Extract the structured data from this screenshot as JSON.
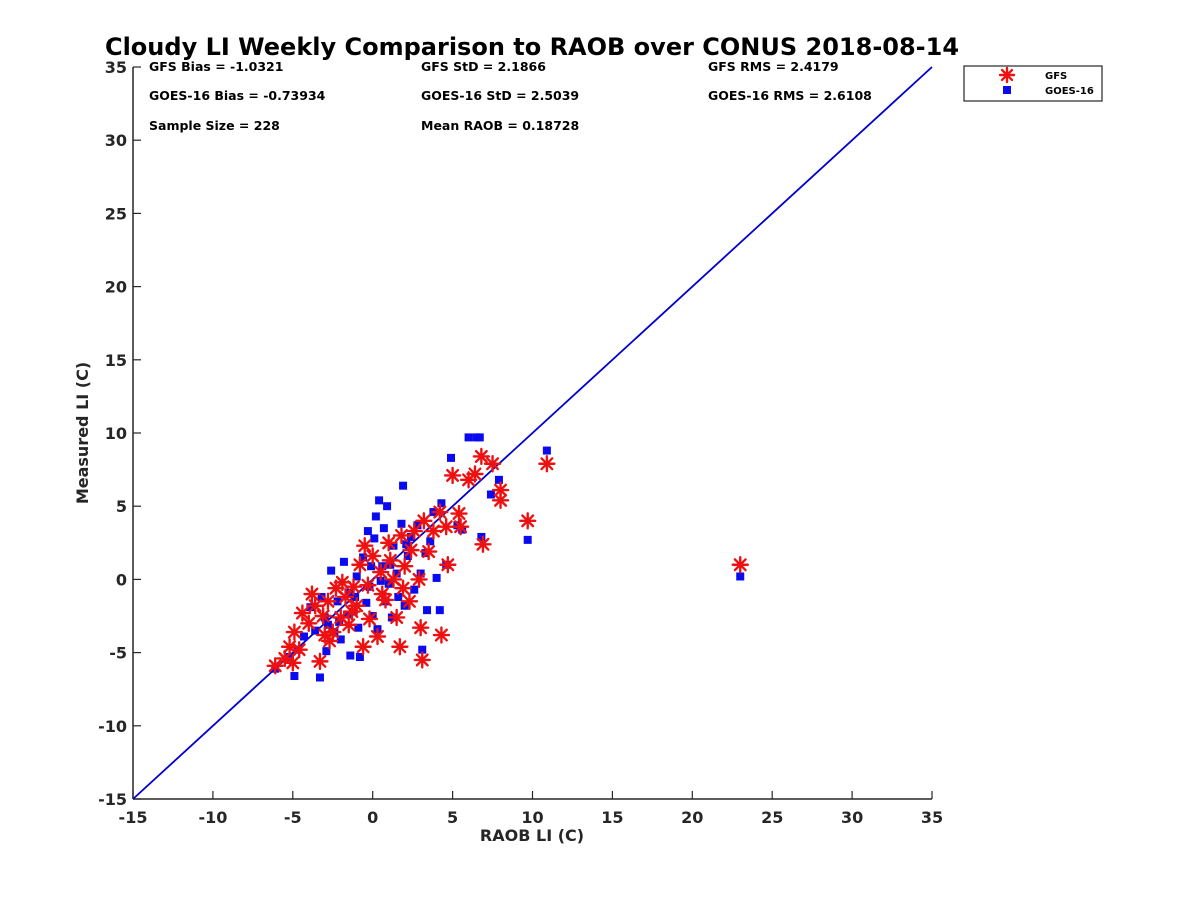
{
  "chart_data": {
    "type": "scatter",
    "title": "Cloudy LI Weekly Comparison to RAOB over CONUS 2018-08-14",
    "xlabel": "RAOB LI (C)",
    "ylabel": "Measured LI (C)",
    "xlim": [
      -15,
      35
    ],
    "ylim": [
      -15,
      35
    ],
    "x_ticks": [
      "-15",
      "-10",
      "-5",
      "0",
      "5",
      "10",
      "15",
      "20",
      "25",
      "30",
      "35"
    ],
    "y_ticks": [
      "-15",
      "-10",
      "-5",
      "0",
      "5",
      "10",
      "15",
      "20",
      "25",
      "30",
      "35"
    ],
    "grid": false,
    "legend_position": "top-right (outside plot)",
    "reference_line": {
      "from": [
        -15,
        -15
      ],
      "to": [
        35,
        35
      ],
      "color": "#0000d0"
    },
    "stats": [
      {
        "key": "gfs_bias",
        "text": "GFS Bias = -1.0321"
      },
      {
        "key": "gfs_std",
        "text": "GFS StD = 2.1866"
      },
      {
        "key": "gfs_rms",
        "text": "GFS RMS = 2.4179"
      },
      {
        "key": "goes_bias",
        "text": "GOES-16 Bias = -0.73934"
      },
      {
        "key": "goes_std",
        "text": "GOES-16 StD = 2.5039"
      },
      {
        "key": "goes_rms",
        "text": "GOES-16 RMS = 2.6108"
      },
      {
        "key": "sample_size",
        "text": "Sample Size = 228"
      },
      {
        "key": "mean_raob",
        "text": "Mean RAOB = 0.18728"
      }
    ],
    "series": [
      {
        "name": "GFS",
        "marker": "asterisk",
        "color": "#ee1111",
        "points": [
          [
            -6.1,
            -5.9
          ],
          [
            -5.2,
            -4.6
          ],
          [
            -4.9,
            -3.6
          ],
          [
            -5.0,
            -5.7
          ],
          [
            -4.4,
            -2.3
          ],
          [
            -3.8,
            -1.0
          ],
          [
            -3.3,
            -5.6
          ],
          [
            -3.1,
            -2.5
          ],
          [
            -2.8,
            -1.5
          ],
          [
            -2.5,
            -3.6
          ],
          [
            -2.3,
            -0.6
          ],
          [
            -2.0,
            -2.6
          ],
          [
            -1.7,
            -1.2
          ],
          [
            -1.5,
            -3.1
          ],
          [
            -1.2,
            -0.5
          ],
          [
            -1.0,
            -1.8
          ],
          [
            -0.8,
            1.0
          ],
          [
            -0.6,
            -4.6
          ],
          [
            -0.5,
            2.3
          ],
          [
            -0.3,
            -0.4
          ],
          [
            0.0,
            1.6
          ],
          [
            0.3,
            -3.9
          ],
          [
            0.5,
            0.5
          ],
          [
            0.8,
            -1.4
          ],
          [
            1.0,
            2.5
          ],
          [
            1.3,
            0.0
          ],
          [
            1.5,
            -2.6
          ],
          [
            1.7,
            -4.6
          ],
          [
            1.8,
            3.0
          ],
          [
            2.0,
            0.9
          ],
          [
            2.3,
            -1.5
          ],
          [
            2.6,
            3.3
          ],
          [
            2.9,
            0.0
          ],
          [
            3.0,
            -3.3
          ],
          [
            3.2,
            4.0
          ],
          [
            3.1,
            -5.5
          ],
          [
            3.5,
            1.9
          ],
          [
            3.8,
            3.3
          ],
          [
            4.2,
            4.6
          ],
          [
            4.3,
            -3.8
          ],
          [
            4.6,
            3.6
          ],
          [
            4.7,
            1.0
          ],
          [
            5.0,
            7.1
          ],
          [
            5.4,
            4.5
          ],
          [
            5.5,
            3.6
          ],
          [
            6.0,
            6.8
          ],
          [
            6.4,
            7.2
          ],
          [
            6.8,
            8.4
          ],
          [
            6.9,
            2.4
          ],
          [
            7.5,
            7.9
          ],
          [
            8.0,
            6.1
          ],
          [
            8.0,
            5.4
          ],
          [
            9.7,
            4.0
          ],
          [
            10.9,
            7.9
          ],
          [
            23.0,
            1.0
          ],
          [
            -4.0,
            -3.0
          ],
          [
            -3.6,
            -1.8
          ],
          [
            -2.7,
            -4.2
          ],
          [
            -1.9,
            -0.2
          ],
          [
            -1.3,
            -2.2
          ],
          [
            -0.2,
            -2.7
          ],
          [
            0.6,
            -1.0
          ],
          [
            1.1,
            1.3
          ],
          [
            1.9,
            -0.6
          ],
          [
            2.4,
            2.0
          ],
          [
            -5.5,
            -5.4
          ],
          [
            -4.6,
            -4.8
          ],
          [
            -3.0,
            -3.8
          ]
        ]
      },
      {
        "name": "GOES-16",
        "marker": "square",
        "color": "#0a0af0",
        "points": [
          [
            -6.1,
            -6.1
          ],
          [
            -5.2,
            -5.3
          ],
          [
            -4.9,
            -6.6
          ],
          [
            -4.7,
            -4.8
          ],
          [
            -4.3,
            -3.9
          ],
          [
            -3.9,
            -1.9
          ],
          [
            -3.3,
            -6.7
          ],
          [
            -3.2,
            -1.2
          ],
          [
            -3.0,
            -2.6
          ],
          [
            -2.9,
            -4.9
          ],
          [
            -2.6,
            0.6
          ],
          [
            -2.4,
            -3.6
          ],
          [
            -2.2,
            -1.5
          ],
          [
            -2.0,
            -4.1
          ],
          [
            -1.8,
            1.2
          ],
          [
            -1.5,
            -0.9
          ],
          [
            -1.4,
            -5.2
          ],
          [
            -1.2,
            -2.2
          ],
          [
            -1.0,
            0.2
          ],
          [
            -0.9,
            -3.3
          ],
          [
            -0.8,
            -5.3
          ],
          [
            -0.6,
            1.5
          ],
          [
            -0.4,
            -1.6
          ],
          [
            -0.3,
            3.3
          ],
          [
            -0.2,
            -0.5
          ],
          [
            0.0,
            -2.5
          ],
          [
            0.1,
            2.8
          ],
          [
            0.2,
            4.3
          ],
          [
            0.3,
            -3.4
          ],
          [
            0.4,
            5.4
          ],
          [
            0.6,
            0.9
          ],
          [
            0.7,
            3.5
          ],
          [
            0.8,
            -1.5
          ],
          [
            0.9,
            5.0
          ],
          [
            1.0,
            -0.3
          ],
          [
            1.2,
            -2.6
          ],
          [
            1.3,
            2.3
          ],
          [
            1.5,
            0.4
          ],
          [
            1.6,
            -1.2
          ],
          [
            1.8,
            3.8
          ],
          [
            1.9,
            6.4
          ],
          [
            2.0,
            -1.8
          ],
          [
            2.2,
            1.6
          ],
          [
            2.4,
            2.9
          ],
          [
            2.6,
            -0.7
          ],
          [
            2.8,
            3.7
          ],
          [
            3.0,
            0.4
          ],
          [
            3.1,
            -4.8
          ],
          [
            3.3,
            1.8
          ],
          [
            3.4,
            -2.1
          ],
          [
            3.6,
            2.6
          ],
          [
            3.8,
            4.6
          ],
          [
            4.0,
            0.1
          ],
          [
            4.2,
            -2.1
          ],
          [
            4.3,
            5.2
          ],
          [
            4.6,
            1.0
          ],
          [
            4.9,
            8.3
          ],
          [
            5.3,
            3.7
          ],
          [
            5.6,
            3.4
          ],
          [
            6.0,
            9.7
          ],
          [
            6.5,
            9.7
          ],
          [
            6.7,
            9.7
          ],
          [
            6.8,
            2.9
          ],
          [
            7.4,
            5.8
          ],
          [
            7.9,
            6.8
          ],
          [
            9.7,
            2.7
          ],
          [
            10.9,
            8.8
          ],
          [
            23.0,
            0.2
          ],
          [
            -3.6,
            -3.5
          ],
          [
            -2.8,
            -3.1
          ],
          [
            -2.1,
            -2.9
          ],
          [
            -1.6,
            -2.4
          ],
          [
            -1.1,
            -1.2
          ],
          [
            -0.1,
            0.9
          ],
          [
            0.5,
            -0.1
          ],
          [
            1.1,
            1.0
          ],
          [
            2.1,
            2.4
          ]
        ]
      }
    ]
  }
}
